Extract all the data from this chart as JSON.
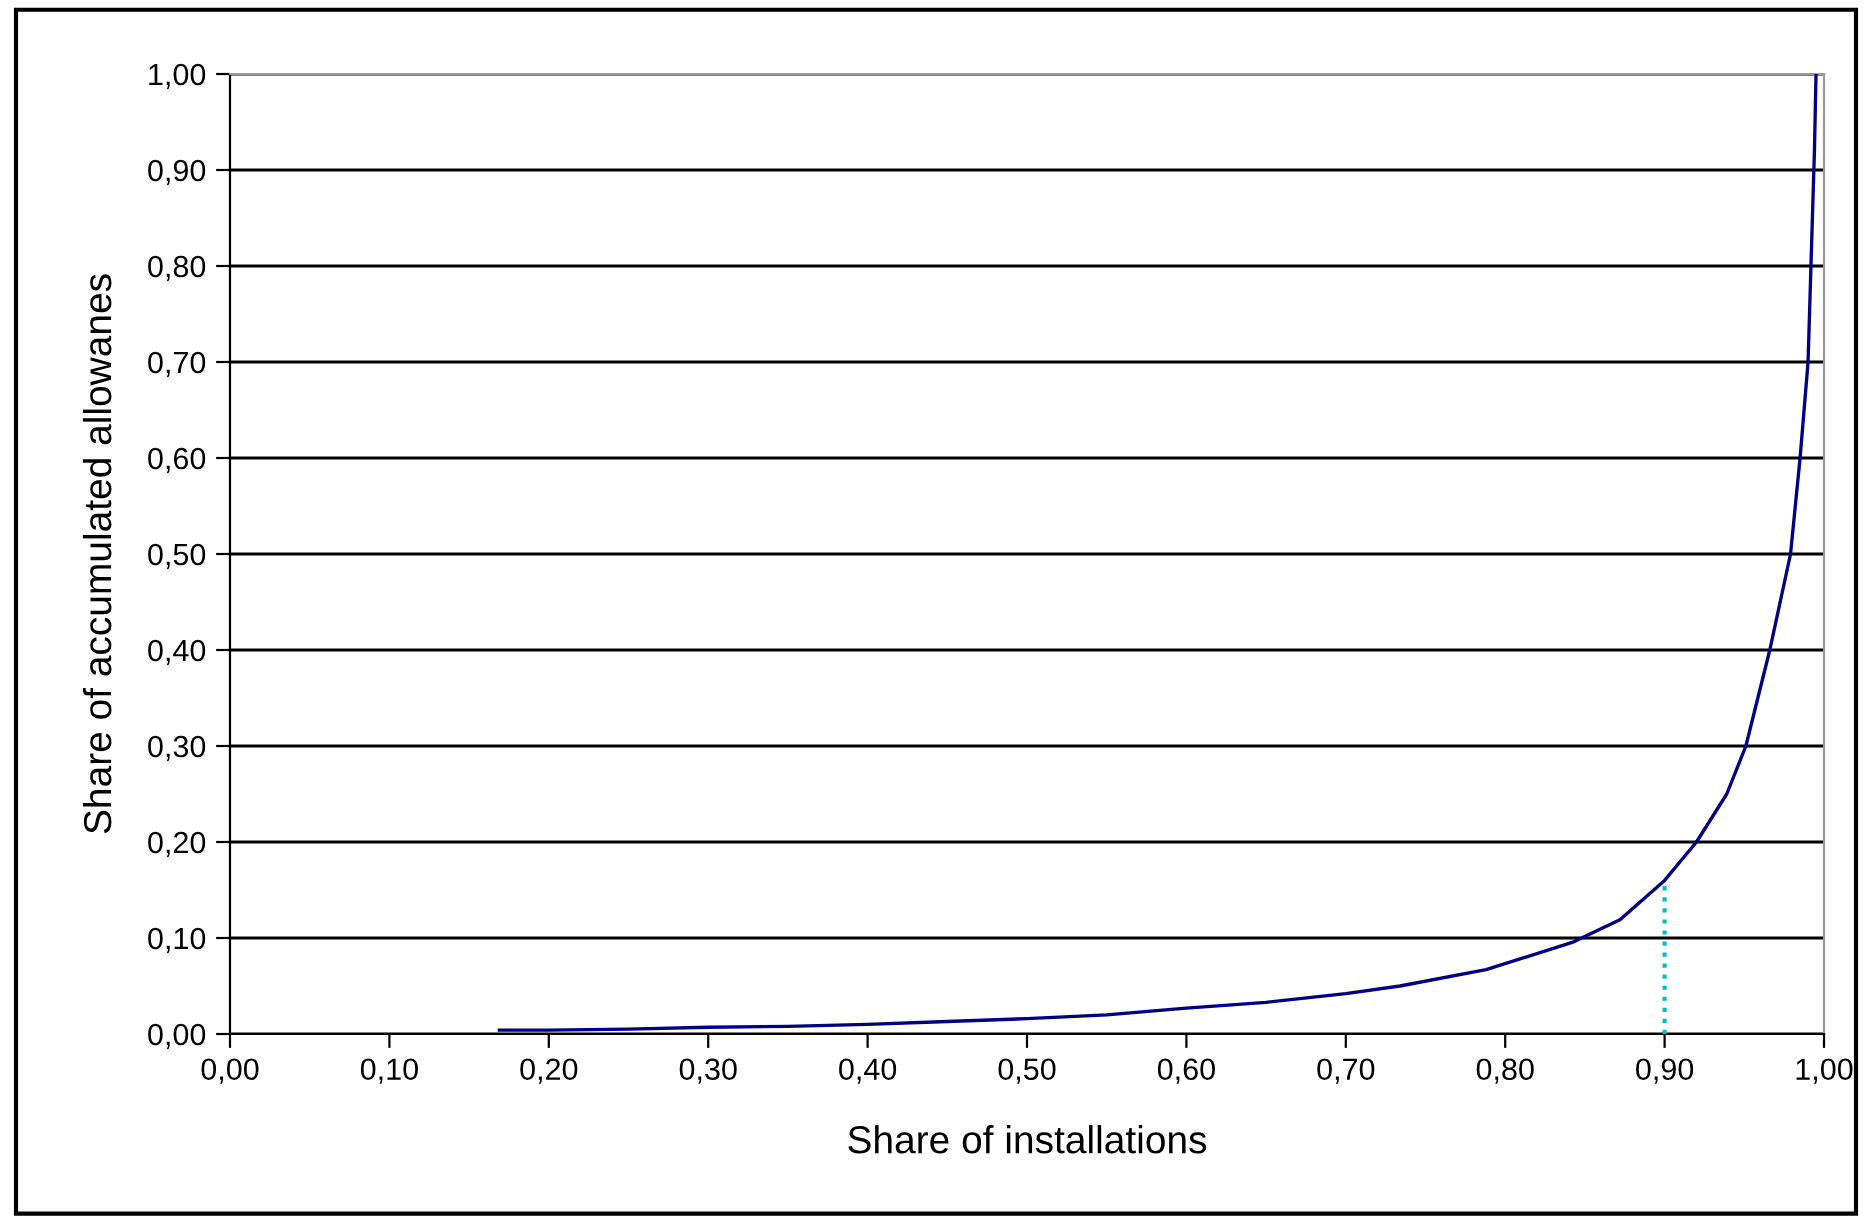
{
  "chart_data": {
    "type": "line",
    "xlabel": "Share of installations",
    "ylabel": "Share of accumulated allowanes",
    "series": [
      {
        "color": "#000080",
        "line_style": "solid",
        "x": [
          0.169,
          0.2,
          0.25,
          0.3,
          0.35,
          0.4,
          0.45,
          0.5,
          0.55,
          0.6,
          0.65,
          0.7,
          0.734,
          0.788,
          0.843,
          0.872,
          0.9,
          0.92,
          0.939,
          0.951,
          0.966,
          0.979,
          0.985,
          0.99,
          0.992,
          0.994,
          0.995
        ],
        "values": [
          0.004,
          0.004,
          0.005,
          0.007,
          0.008,
          0.01,
          0.013,
          0.016,
          0.02,
          0.027,
          0.033,
          0.042,
          0.05,
          0.067,
          0.096,
          0.119,
          0.16,
          0.2,
          0.25,
          0.3,
          0.4,
          0.5,
          0.6,
          0.7,
          0.81,
          0.92,
          1.0
        ]
      },
      {
        "color": "#00c0c0",
        "line_style": "dotted",
        "x": [
          0.9,
          0.9
        ],
        "values": [
          0,
          0.16
        ]
      }
    ],
    "xlim": [
      0,
      1
    ],
    "ylim": [
      0,
      1
    ],
    "xticks": [
      {
        "value": 0,
        "label": "0,00"
      },
      {
        "value": 0.1,
        "label": "0,10"
      },
      {
        "value": 0.2,
        "label": "0,20"
      },
      {
        "value": 0.3,
        "label": "0,30"
      },
      {
        "value": 0.4,
        "label": "0,40"
      },
      {
        "value": 0.5,
        "label": "0,50"
      },
      {
        "value": 0.6,
        "label": "0,60"
      },
      {
        "value": 0.7,
        "label": "0,70"
      },
      {
        "value": 0.8,
        "label": "0,80"
      },
      {
        "value": 0.9,
        "label": "0,90"
      },
      {
        "value": 1,
        "label": "1,00"
      }
    ],
    "yticks": [
      {
        "value": 0,
        "label": "0,00"
      },
      {
        "value": 0.1,
        "label": "0,10"
      },
      {
        "value": 0.2,
        "label": "0,20"
      },
      {
        "value": 0.3,
        "label": "0,30"
      },
      {
        "value": 0.4,
        "label": "0,40"
      },
      {
        "value": 0.5,
        "label": "0,50"
      },
      {
        "value": 0.6,
        "label": "0,60"
      },
      {
        "value": 0.7,
        "label": "0,70"
      },
      {
        "value": 0.8,
        "label": "0,80"
      },
      {
        "value": 0.9,
        "label": "0,90"
      },
      {
        "value": 1,
        "label": "1,00"
      }
    ],
    "grid": "y",
    "marker": "none"
  }
}
